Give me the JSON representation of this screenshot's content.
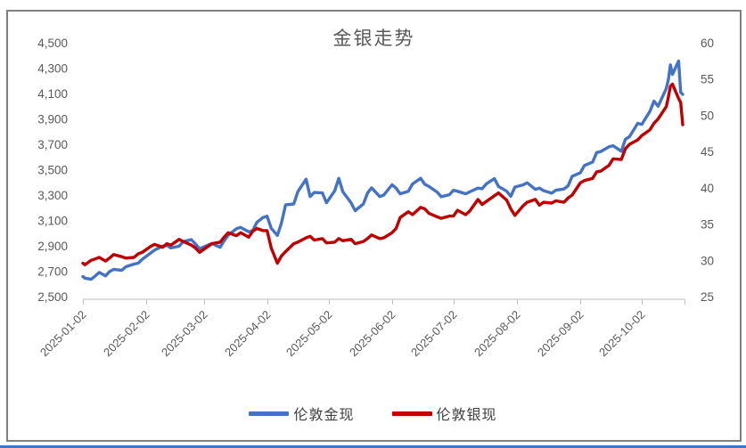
{
  "window": {
    "frame_border_color": "#808080",
    "bottom_strip_color": "#4472C4",
    "background_color": "#ffffff"
  },
  "chart_data": {
    "type": "line",
    "title": "金银走势",
    "title_color": "#595959",
    "grid": false,
    "legend_position": "bottom",
    "axis_text_color": "#595959",
    "axis_line_color": "#bfbfbf",
    "axes": {
      "left": {
        "min": 2500,
        "max": 4500,
        "step": 200,
        "tick_labels": [
          "4,500",
          "4,300",
          "4,100",
          "3,900",
          "3,700",
          "3,500",
          "3,300",
          "3,100",
          "2,900",
          "2,700",
          "2,500"
        ]
      },
      "right": {
        "min": 25,
        "max": 60,
        "step": 5,
        "tick_labels": [
          "60",
          "55",
          "50",
          "45",
          "40",
          "35",
          "30",
          "25"
        ]
      },
      "x": {
        "tick_labels": [
          "2025-01-02",
          "2025-02-02",
          "2025-03-02",
          "2025-04-02",
          "2025-05-02",
          "2025-06-02",
          "2025-07-02",
          "2025-08-02",
          "2025-09-02",
          "2025-10-02"
        ],
        "label_rotation_deg": -45
      }
    },
    "dates": [
      "2025-01-02",
      "2025-01-03",
      "2025-01-06",
      "2025-01-08",
      "2025-01-10",
      "2025-01-13",
      "2025-01-15",
      "2025-01-17",
      "2025-01-21",
      "2025-01-23",
      "2025-01-27",
      "2025-01-29",
      "2025-01-31",
      "2025-02-04",
      "2025-02-06",
      "2025-02-10",
      "2025-02-12",
      "2025-02-14",
      "2025-02-18",
      "2025-02-20",
      "2025-02-24",
      "2025-02-26",
      "2025-02-28",
      "2025-03-04",
      "2025-03-06",
      "2025-03-10",
      "2025-03-12",
      "2025-03-14",
      "2025-03-18",
      "2025-03-20",
      "2025-03-24",
      "2025-03-26",
      "2025-03-28",
      "2025-03-31",
      "2025-04-02",
      "2025-04-04",
      "2025-04-07",
      "2025-04-09",
      "2025-04-11",
      "2025-04-15",
      "2025-04-17",
      "2025-04-21",
      "2025-04-23",
      "2025-04-25",
      "2025-04-29",
      "2025-05-01",
      "2025-05-05",
      "2025-05-07",
      "2025-05-09",
      "2025-05-13",
      "2025-05-15",
      "2025-05-19",
      "2025-05-21",
      "2025-05-23",
      "2025-05-27",
      "2025-05-29",
      "2025-06-02",
      "2025-06-04",
      "2025-06-06",
      "2025-06-10",
      "2025-06-12",
      "2025-06-16",
      "2025-06-18",
      "2025-06-20",
      "2025-06-24",
      "2025-06-26",
      "2025-06-30",
      "2025-07-02",
      "2025-07-04",
      "2025-07-08",
      "2025-07-10",
      "2025-07-14",
      "2025-07-16",
      "2025-07-18",
      "2025-07-22",
      "2025-07-24",
      "2025-07-28",
      "2025-07-30",
      "2025-08-01",
      "2025-08-05",
      "2025-08-07",
      "2025-08-11",
      "2025-08-13",
      "2025-08-15",
      "2025-08-19",
      "2025-08-21",
      "2025-08-25",
      "2025-08-27",
      "2025-08-29",
      "2025-09-02",
      "2025-09-04",
      "2025-09-08",
      "2025-09-10",
      "2025-09-12",
      "2025-09-16",
      "2025-09-18",
      "2025-09-22",
      "2025-09-24",
      "2025-09-26",
      "2025-09-30",
      "2025-10-02",
      "2025-10-06",
      "2025-10-08",
      "2025-10-10",
      "2025-10-14",
      "2025-10-15",
      "2025-10-16",
      "2025-10-17",
      "2025-10-20",
      "2025-10-21",
      "2025-10-22"
    ],
    "series": [
      {
        "name": "伦敦金现",
        "axis": "left",
        "color": "#4472C4",
        "values": [
          2658,
          2645,
          2636,
          2662,
          2690,
          2663,
          2697,
          2714,
          2708,
          2735,
          2756,
          2763,
          2794,
          2842,
          2866,
          2898,
          2904,
          2883,
          2897,
          2933,
          2949,
          2915,
          2877,
          2905,
          2918,
          2889,
          2939,
          2984,
          3035,
          3045,
          3011,
          3020,
          3085,
          3123,
          3133,
          3038,
          2982,
          3080,
          3222,
          3230,
          3327,
          3425,
          3288,
          3320,
          3317,
          3240,
          3333,
          3431,
          3325,
          3240,
          3177,
          3230,
          3315,
          3357,
          3288,
          3300,
          3381,
          3355,
          3310,
          3330,
          3387,
          3432,
          3385,
          3368,
          3324,
          3287,
          3303,
          3337,
          3330,
          3310,
          3325,
          3355,
          3350,
          3387,
          3430,
          3368,
          3330,
          3290,
          3363,
          3380,
          3397,
          3345,
          3355,
          3335,
          3315,
          3338,
          3348,
          3373,
          3448,
          3476,
          3533,
          3560,
          3635,
          3643,
          3680,
          3689,
          3645,
          3740,
          3760,
          3865,
          3857,
          3960,
          4040,
          4000,
          4140,
          4210,
          4325,
          4251,
          4356,
          4110,
          4093
        ]
      },
      {
        "name": "伦敦银现",
        "axis": "right",
        "color": "#C00000",
        "values": [
          29.6,
          29.4,
          30.0,
          30.2,
          30.4,
          29.9,
          30.3,
          30.8,
          30.5,
          30.3,
          30.4,
          30.9,
          31.1,
          31.9,
          32.2,
          31.8,
          32.3,
          32.1,
          32.9,
          32.6,
          32.1,
          31.7,
          31.1,
          31.9,
          32.3,
          32.5,
          33.2,
          33.8,
          33.4,
          33.8,
          33.2,
          34.0,
          34.4,
          34.1,
          34.1,
          31.7,
          29.6,
          30.6,
          31.2,
          32.3,
          32.5,
          33.1,
          33.3,
          32.8,
          33.0,
          32.4,
          32.5,
          33.0,
          32.7,
          32.9,
          32.3,
          32.6,
          33.0,
          33.5,
          33.0,
          33.1,
          33.8,
          34.4,
          35.9,
          36.7,
          36.3,
          37.3,
          37.1,
          36.5,
          36.0,
          35.8,
          36.1,
          36.1,
          36.9,
          36.3,
          36.8,
          38.4,
          37.7,
          38.1,
          38.9,
          39.3,
          38.3,
          37.1,
          36.2,
          37.5,
          38.0,
          38.4,
          37.6,
          38.0,
          37.9,
          38.2,
          38.0,
          38.6,
          39.0,
          40.7,
          41.0,
          41.3,
          42.2,
          42.3,
          43.1,
          44.0,
          43.9,
          45.4,
          46.0,
          46.6,
          47.2,
          48.0,
          48.9,
          49.5,
          51.2,
          52.5,
          54.0,
          54.3,
          52.3,
          51.8,
          48.7
        ]
      }
    ]
  }
}
